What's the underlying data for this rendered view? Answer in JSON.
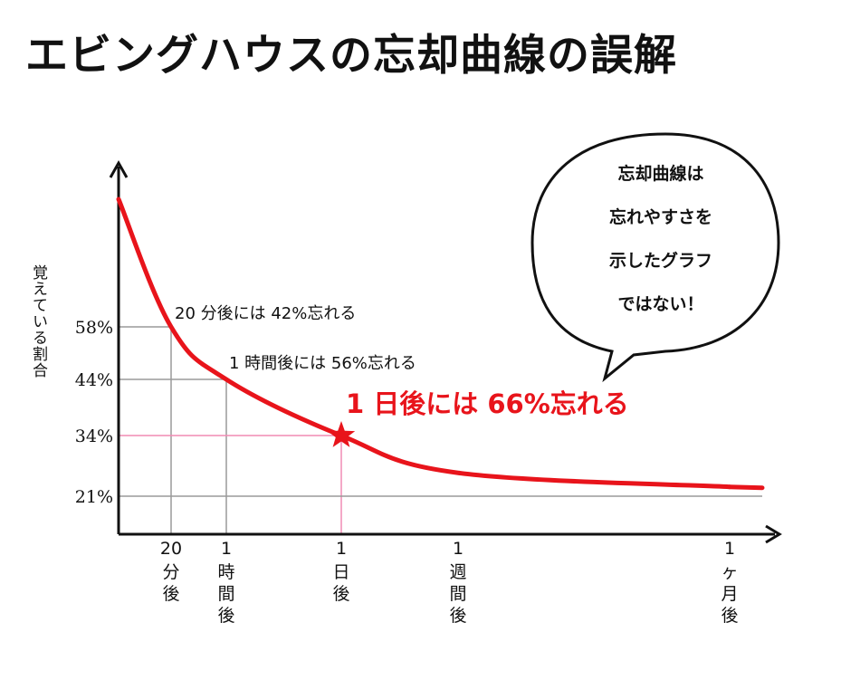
{
  "title": "エビングハウスの忘却曲線の誤解",
  "chart_data": {
    "type": "line",
    "ylabel": "覚えている割合",
    "x_ticks": [
      {
        "top": "20",
        "lines": [
          "分",
          "後"
        ],
        "x": 0.3333
      },
      {
        "top": "1",
        "lines": [
          "時",
          "間",
          "後"
        ],
        "x": 1
      },
      {
        "top": "1",
        "lines": [
          "日",
          "後"
        ],
        "x": 24
      },
      {
        "top": "1",
        "lines": [
          "週",
          "間",
          "後"
        ],
        "x": 168
      },
      {
        "top": "1",
        "lines": [
          "ヶ",
          "月",
          "後"
        ],
        "x": 744
      }
    ],
    "y_ticks": [
      "58%",
      "44%",
      "34%",
      "21%"
    ],
    "y_tick_values": [
      58,
      44,
      34,
      21
    ],
    "series": [
      {
        "color": "#e8141b",
        "x_unit": "hours",
        "points": [
          [
            0,
            100
          ],
          [
            0.3333,
            58
          ],
          [
            1,
            44
          ],
          [
            24,
            34
          ],
          [
            168,
            26
          ],
          [
            744,
            23
          ]
        ]
      }
    ],
    "markers": [
      {
        "x": 24,
        "y": 34,
        "shape": "star",
        "color": "#e8141b"
      }
    ],
    "annotations": [
      {
        "text": "20 分後には 42%忘れる",
        "color": "#111111",
        "emphasis": false
      },
      {
        "text": "1 時間後には 56%忘れる",
        "color": "#111111",
        "emphasis": false
      },
      {
        "text": "1 日後には 66%忘れる",
        "color": "#e8141b",
        "emphasis": true
      }
    ],
    "guides": [
      {
        "x": 0.3333,
        "y": 58,
        "color": "#9a9a9a"
      },
      {
        "x": 1,
        "y": 44,
        "color": "#9a9a9a"
      },
      {
        "x": 24,
        "y": 34,
        "color": "#f08bb4"
      },
      {
        "x": null,
        "y": 21,
        "color": "#9a9a9a"
      }
    ]
  },
  "speech_bubble": {
    "lines": [
      "忘却曲線は",
      "忘れやすさを",
      "示したグラフ",
      "ではない！"
    ]
  }
}
